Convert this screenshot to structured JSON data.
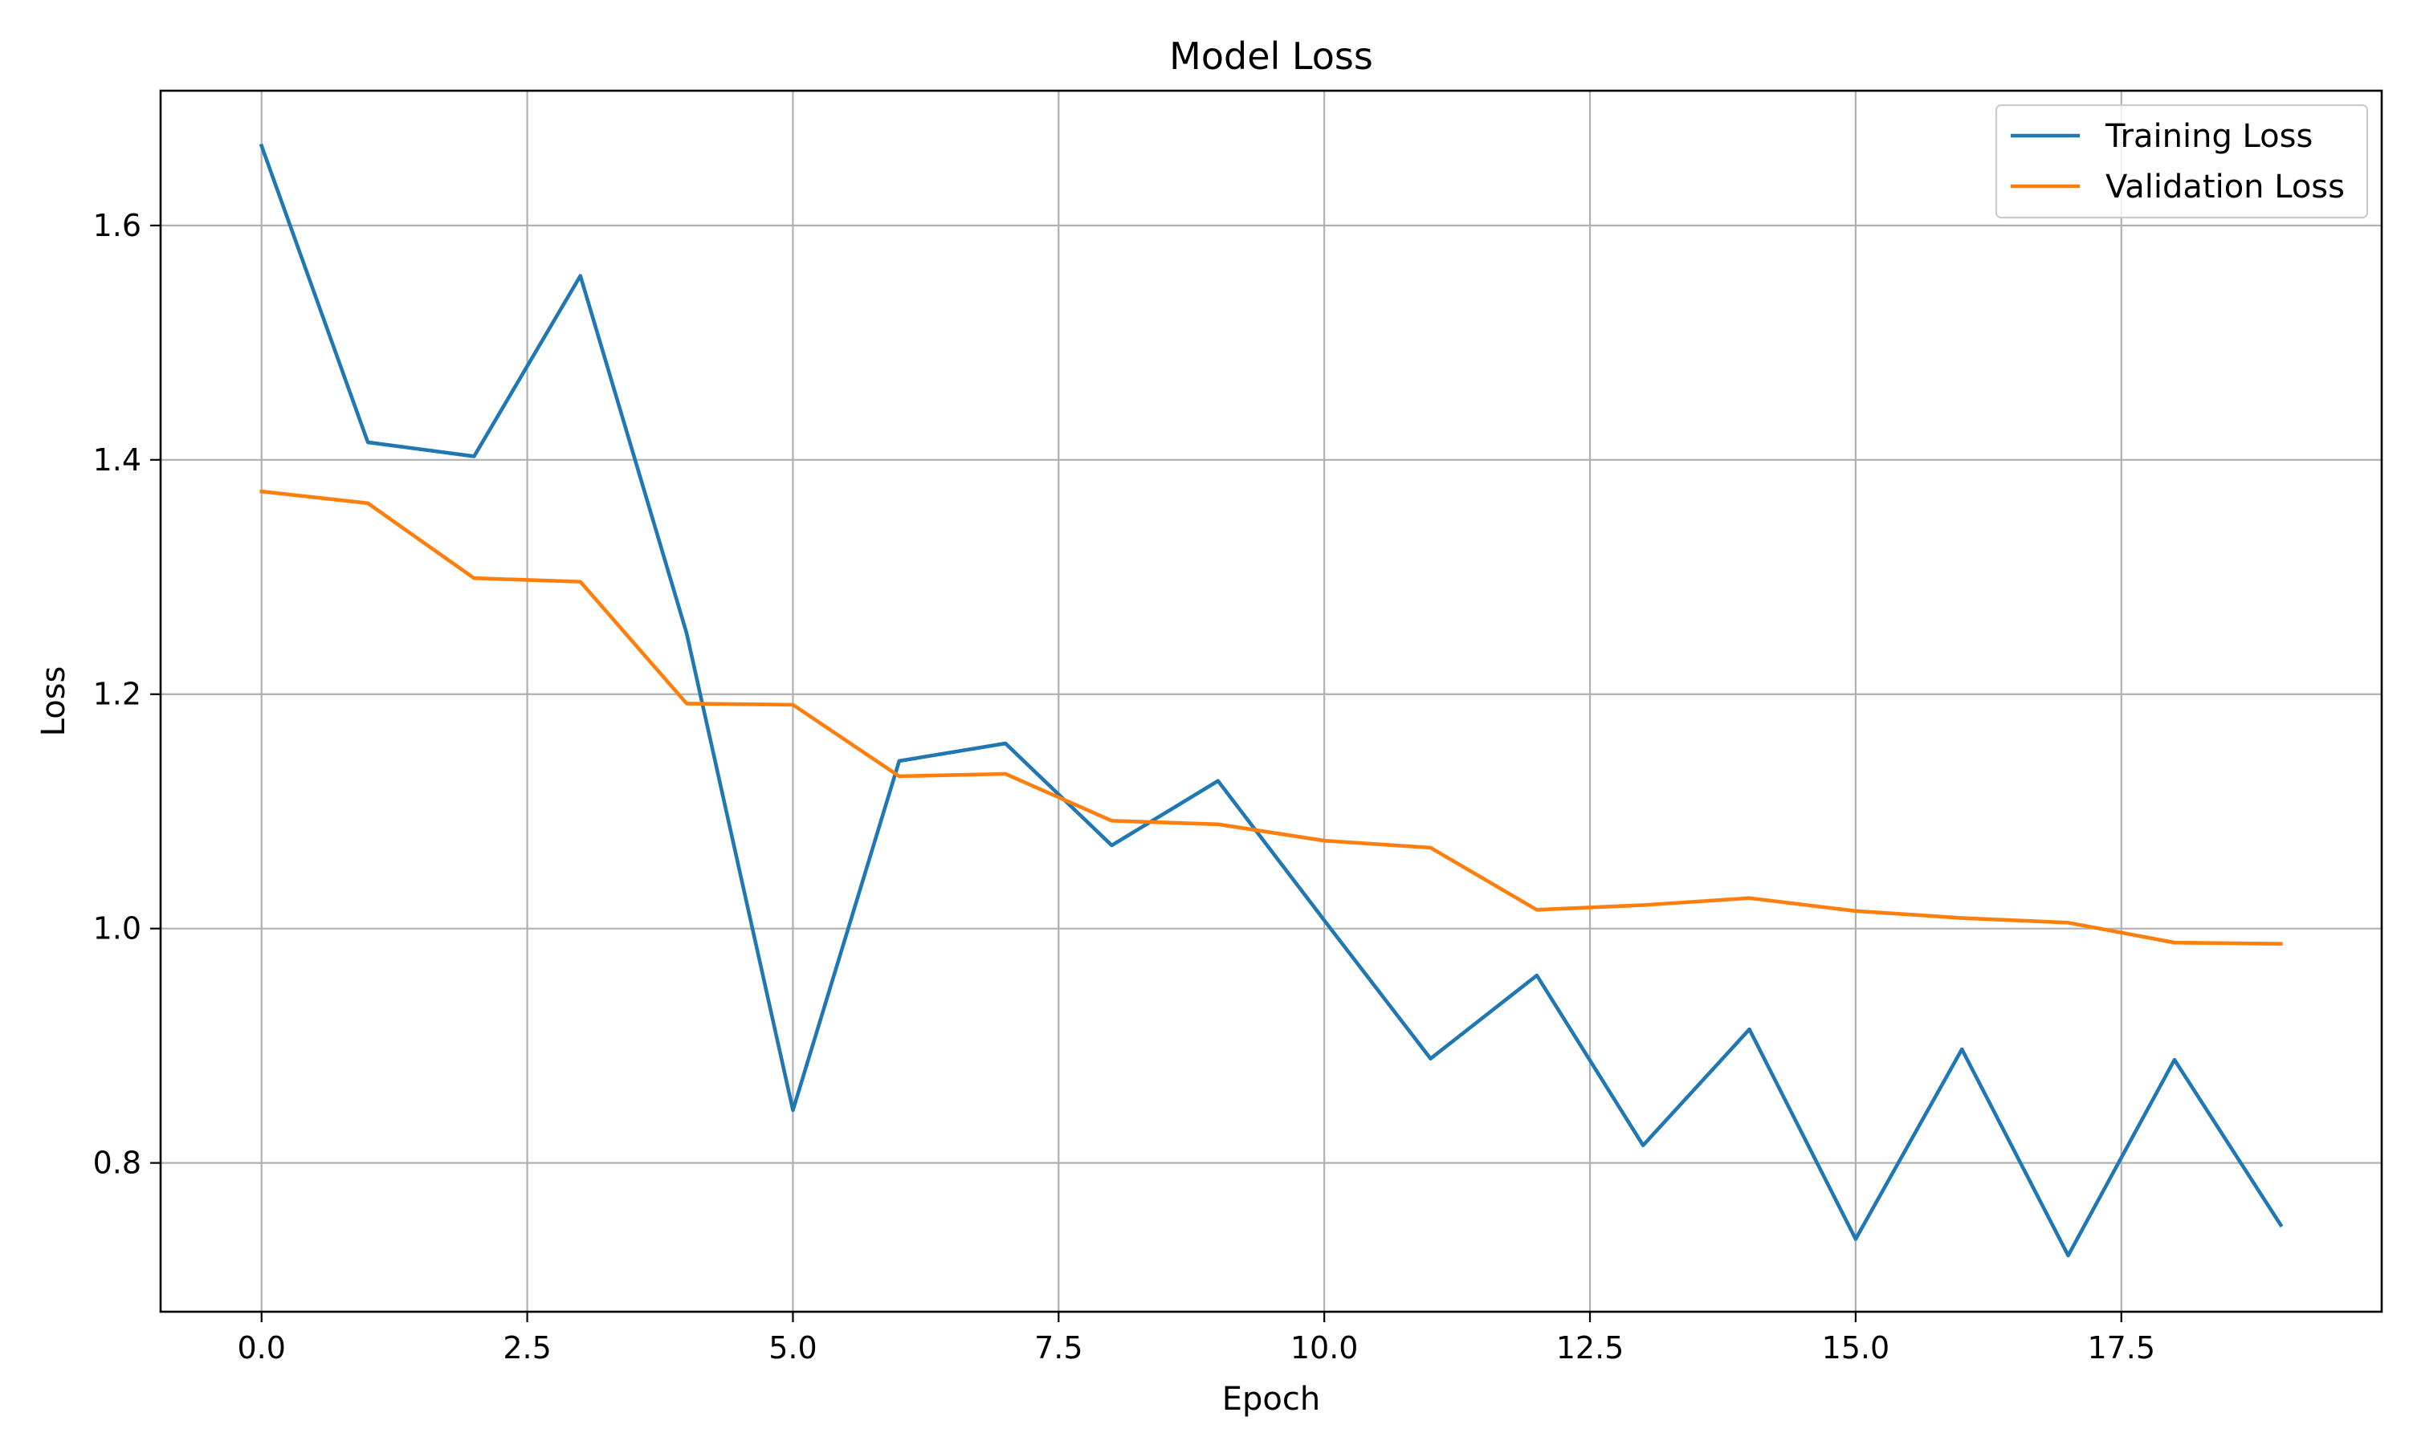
{
  "chart_data": {
    "type": "line",
    "title": "Model Loss",
    "xlabel": "Epoch",
    "ylabel": "Loss",
    "xlim": [
      -0.95,
      19.95
    ],
    "ylim": [
      0.673,
      1.715
    ],
    "xticks": [
      0.0,
      2.5,
      5.0,
      7.5,
      10.0,
      12.5,
      15.0,
      17.5
    ],
    "xtick_labels": [
      "0.0",
      "2.5",
      "5.0",
      "7.5",
      "10.0",
      "12.5",
      "15.0",
      "17.5"
    ],
    "yticks": [
      0.8,
      1.0,
      1.2,
      1.4,
      1.6
    ],
    "ytick_labels": [
      "0.8",
      "1.0",
      "1.2",
      "1.4",
      "1.6"
    ],
    "grid": true,
    "legend_position": "top-right",
    "x": [
      0,
      1,
      2,
      3,
      4,
      5,
      6,
      7,
      8,
      9,
      10,
      11,
      12,
      13,
      14,
      15,
      16,
      17,
      18,
      19
    ],
    "series": [
      {
        "name": "Training Loss",
        "color": "#1f77b4",
        "values": [
          1.668,
          1.415,
          1.403,
          1.557,
          1.252,
          0.845,
          1.143,
          1.158,
          1.071,
          1.126,
          1.007,
          0.889,
          0.96,
          0.815,
          0.914,
          0.735,
          0.897,
          0.721,
          0.888,
          0.747
        ]
      },
      {
        "name": "Validation Loss",
        "color": "#ff7f0e",
        "values": [
          1.373,
          1.363,
          1.299,
          1.296,
          1.192,
          1.191,
          1.13,
          1.132,
          1.092,
          1.089,
          1.075,
          1.069,
          1.016,
          1.02,
          1.026,
          1.015,
          1.009,
          1.005,
          0.988,
          0.987
        ]
      }
    ]
  }
}
